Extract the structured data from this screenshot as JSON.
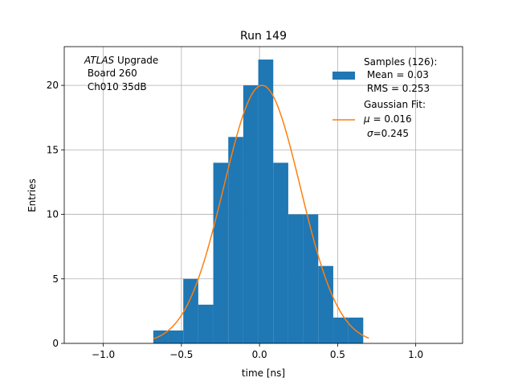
{
  "chart_data": {
    "type": "bar",
    "title": "Run 149",
    "xlabel": "time [ns]",
    "ylabel": "Entries",
    "xlim": [
      -1.25,
      1.3
    ],
    "ylim": [
      0,
      23
    ],
    "grid": true,
    "xticks": [
      -1.0,
      -0.5,
      0.0,
      0.5,
      1.0
    ],
    "xtick_labels": [
      "−1.0",
      "−0.5",
      "0.0",
      "0.5",
      "1.0"
    ],
    "yticks": [
      0,
      5,
      10,
      15,
      20
    ],
    "ytick_labels": [
      "0",
      "5",
      "10",
      "15",
      "20"
    ],
    "bin_edges": [
      -0.68,
      -0.584,
      -0.488,
      -0.392,
      -0.296,
      -0.2,
      -0.104,
      -0.008,
      0.088,
      0.184,
      0.28,
      0.376,
      0.472,
      0.568,
      0.664,
      0.76
    ],
    "counts": [
      1,
      1,
      5,
      3,
      14,
      16,
      20,
      22,
      14,
      10,
      10,
      6,
      2,
      2,
      0
    ],
    "hist_color": "#1f77b4",
    "fit": {
      "type": "gaussian",
      "amplitude": 20,
      "mu": 0.016,
      "sigma": 0.245,
      "x_range": [
        -0.68,
        0.7
      ],
      "color": "#ff7f0e"
    },
    "annotation": {
      "line1_italic": "ATLAS",
      "line1_rest": " Upgrade",
      "line2": " Board 260",
      "line3": " Ch010 35dB"
    },
    "legend": {
      "placement": "top-right",
      "samples_title": "Samples (126):",
      "samples_mean": " Mean = 0.03",
      "samples_rms": " RMS = 0.253",
      "fit_title": "Gaussian Fit:",
      "fit_mu_sym": "μ",
      "fit_mu_val": " = 0.016",
      "fit_sigma_sym": "σ",
      "fit_sigma_val": "=0.245"
    }
  }
}
